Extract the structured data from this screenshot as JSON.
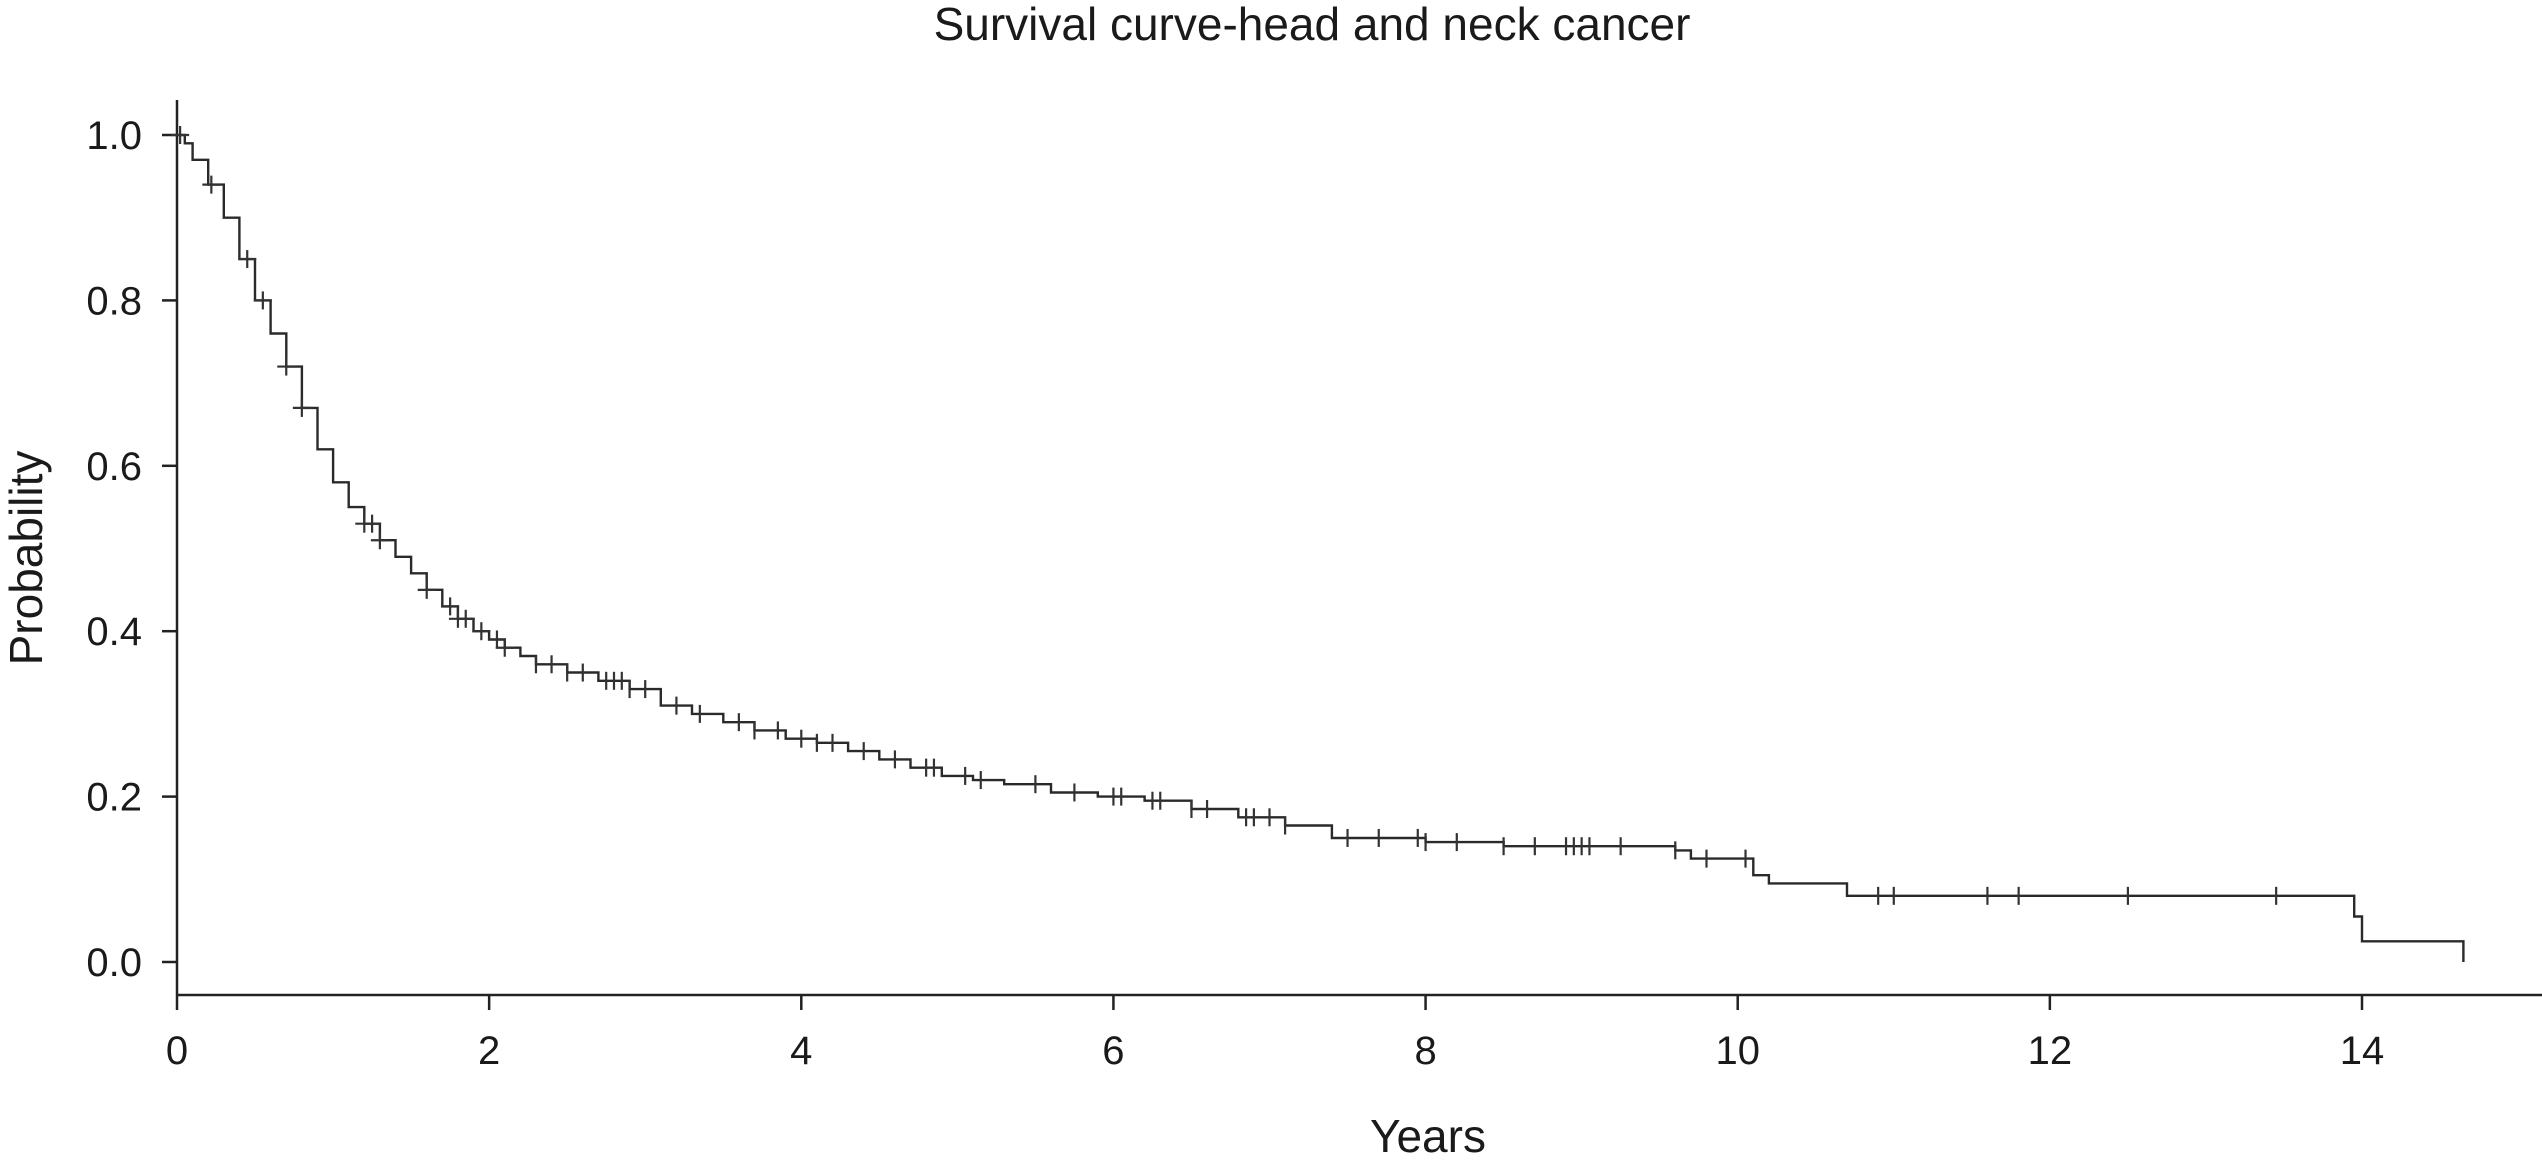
{
  "chart_data": {
    "type": "line",
    "title": "Survival curve-head and neck cancer",
    "xlabel": "Years",
    "ylabel": "Probability",
    "xlim": [
      0,
      15
    ],
    "ylim": [
      0,
      1
    ],
    "x_ticks": [
      "0",
      "2",
      "4",
      "6",
      "8",
      "10",
      "12",
      "14"
    ],
    "y_ticks": [
      "0.0",
      "0.2",
      "0.4",
      "0.6",
      "0.8",
      "1.0"
    ],
    "grid": false,
    "legend": "none",
    "series": [
      {
        "x": [
          0,
          0.05,
          0.1,
          0.2,
          0.3,
          0.4,
          0.5,
          0.6,
          0.7,
          0.8,
          0.9,
          1.0,
          1.1,
          1.2,
          1.3,
          1.4,
          1.5,
          1.6,
          1.7,
          1.8,
          1.9,
          2.0,
          2.1,
          2.2,
          2.3,
          2.5,
          2.7,
          2.9,
          3.1,
          3.3,
          3.5,
          3.7,
          3.9,
          4.1,
          4.3,
          4.5,
          4.7,
          4.9,
          5.1,
          5.3,
          5.6,
          5.9,
          6.2,
          6.5,
          6.8,
          7.1,
          7.4,
          7.7,
          8.0,
          8.5,
          9.0,
          9.5,
          9.6,
          9.7,
          9.9,
          10.0,
          10.1,
          10.2,
          10.7,
          11.0,
          12.0,
          13.0,
          13.5,
          13.9,
          13.95,
          14.0,
          14.3,
          14.65,
          14.65
        ],
        "y": [
          1.0,
          0.99,
          0.97,
          0.94,
          0.9,
          0.85,
          0.8,
          0.76,
          0.72,
          0.67,
          0.62,
          0.58,
          0.55,
          0.53,
          0.51,
          0.49,
          0.47,
          0.45,
          0.43,
          0.415,
          0.4,
          0.39,
          0.38,
          0.37,
          0.36,
          0.35,
          0.34,
          0.33,
          0.31,
          0.3,
          0.29,
          0.28,
          0.27,
          0.265,
          0.255,
          0.245,
          0.235,
          0.225,
          0.22,
          0.215,
          0.205,
          0.2,
          0.195,
          0.185,
          0.175,
          0.165,
          0.15,
          0.15,
          0.145,
          0.14,
          0.14,
          0.14,
          0.135,
          0.125,
          0.125,
          0.125,
          0.105,
          0.095,
          0.08,
          0.08,
          0.08,
          0.08,
          0.08,
          0.08,
          0.055,
          0.025,
          0.025,
          0.025,
          0.0
        ]
      }
    ],
    "censored_x": [
      0.02,
      0.22,
      0.45,
      0.55,
      0.7,
      0.8,
      1.2,
      1.25,
      1.3,
      1.6,
      1.75,
      1.8,
      1.85,
      1.95,
      2.05,
      2.1,
      2.3,
      2.4,
      2.5,
      2.6,
      2.75,
      2.8,
      2.85,
      2.9,
      3.0,
      3.2,
      3.35,
      3.6,
      3.7,
      3.85,
      4.0,
      4.1,
      4.2,
      4.4,
      4.6,
      4.8,
      4.85,
      5.05,
      5.15,
      5.5,
      5.75,
      6.0,
      6.05,
      6.25,
      6.3,
      6.5,
      6.6,
      6.85,
      6.9,
      7.0,
      7.1,
      7.5,
      7.7,
      7.95,
      8.0,
      8.2,
      8.5,
      8.7,
      8.9,
      8.95,
      9.0,
      9.05,
      9.25,
      9.6,
      9.8,
      10.05,
      10.9,
      11.0,
      11.6,
      11.8,
      12.5,
      13.45
    ]
  }
}
